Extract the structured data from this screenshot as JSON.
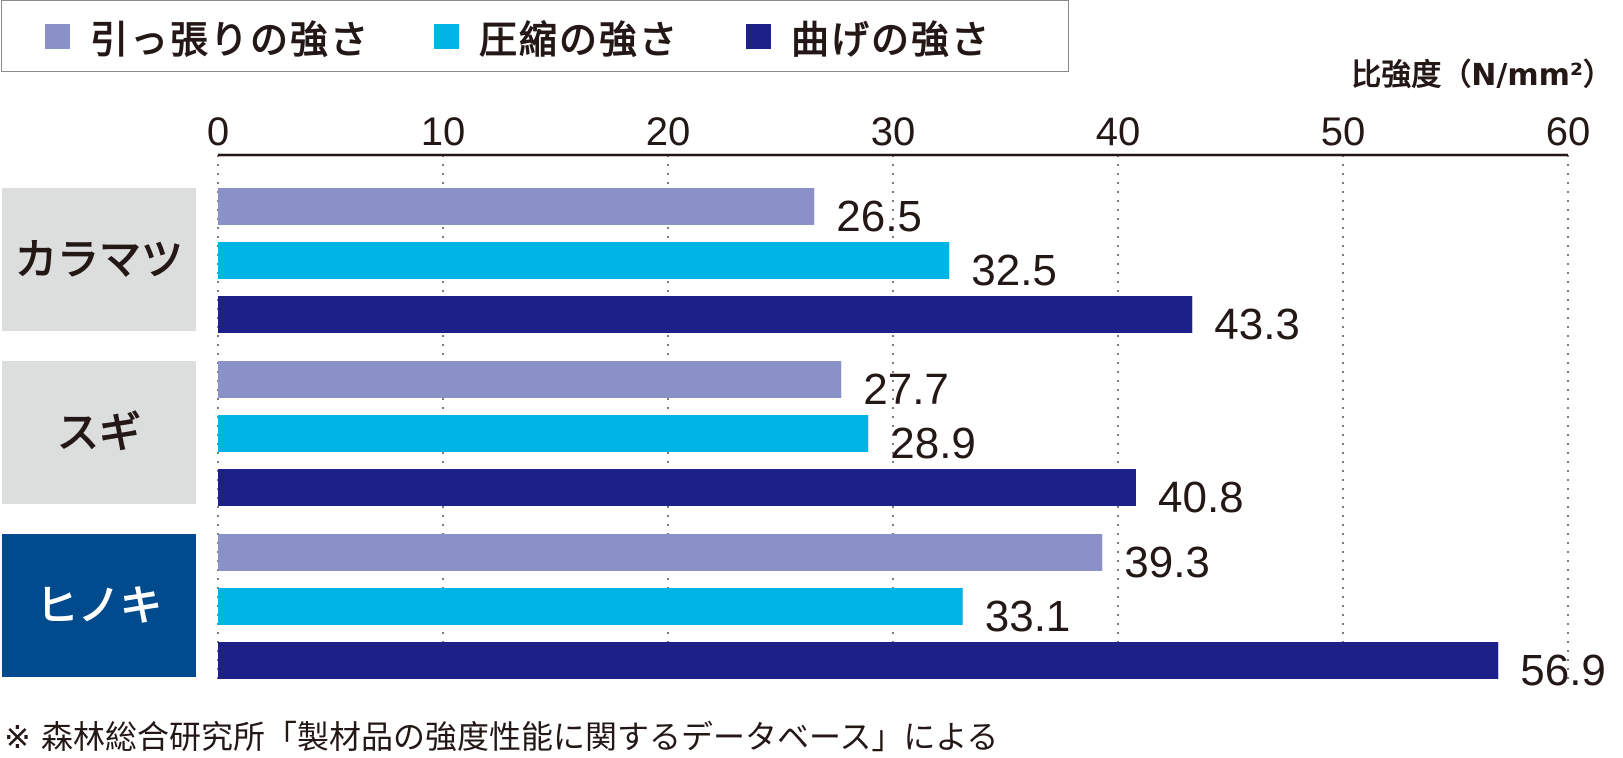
{
  "chart_data": {
    "type": "bar",
    "orientation": "horizontal",
    "unit_label": "比強度（N/mm²）",
    "xlim": [
      0,
      60
    ],
    "ticks": [
      0,
      10,
      20,
      30,
      40,
      50,
      60
    ],
    "grid": true,
    "legend_position": "top-left",
    "categories": [
      "カラマツ",
      "スギ",
      "ヒノキ"
    ],
    "highlight_category": "ヒノキ",
    "series": [
      {
        "name": "引っ張りの強さ",
        "color": "#8a91c9",
        "values": [
          26.5,
          27.7,
          39.3
        ]
      },
      {
        "name": "圧縮の強さ",
        "color": "#00b4e6",
        "values": [
          32.5,
          28.9,
          33.1
        ]
      },
      {
        "name": "曲げの強さ",
        "color": "#1d2088",
        "values": [
          43.3,
          40.8,
          56.9
        ]
      }
    ],
    "value_labels": [
      [
        "26.5",
        "27.7",
        "39.3"
      ],
      [
        "32.5",
        "28.9",
        "33.1"
      ],
      [
        "43.3",
        "40.8",
        "56.9"
      ]
    ],
    "tick_labels": [
      "0",
      "10",
      "20",
      "30",
      "40",
      "50",
      "60"
    ],
    "category_box_color": "#dcdddd",
    "highlight_box_color": "#004b8d"
  },
  "footnote": "※ 森林総合研究所「製材品の強度性能に関するデータベース」による"
}
